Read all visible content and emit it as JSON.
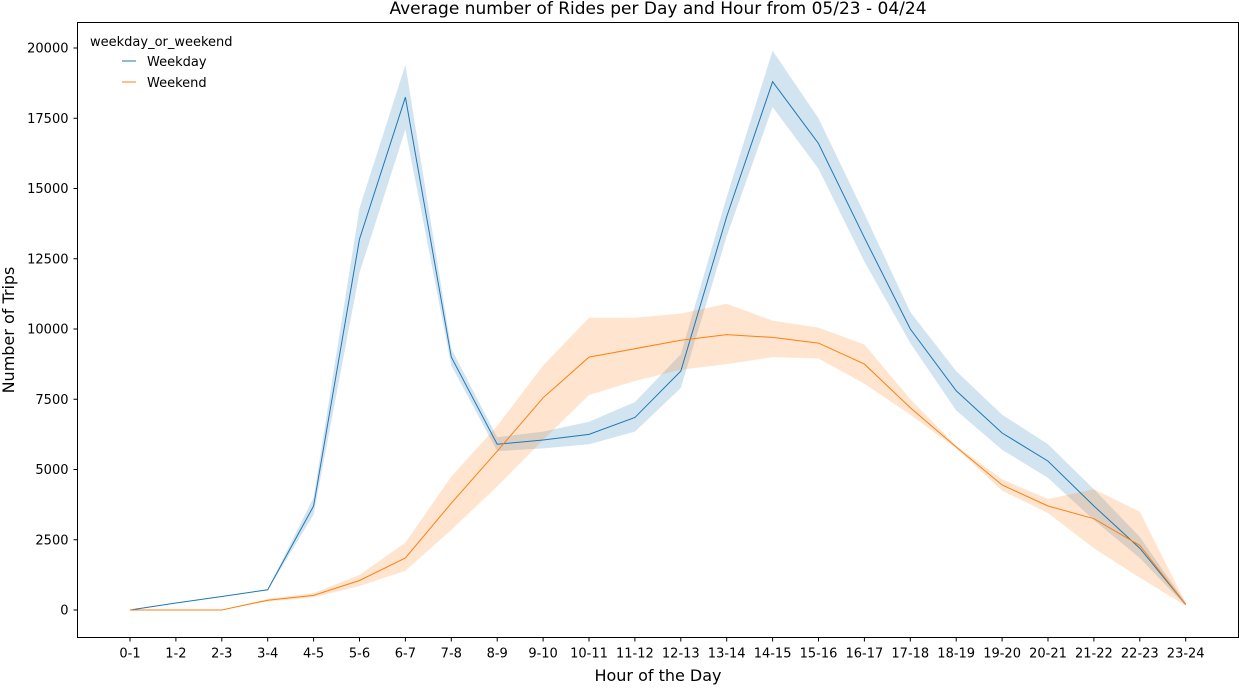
{
  "chart_data": {
    "type": "line",
    "title": "Average number of Rides per Day and Hour from 05/23 - 04/24",
    "xlabel": "Hour of the Day",
    "ylabel": "Number of Trips",
    "categories": [
      "0-1",
      "1-2",
      "2-3",
      "3-4",
      "4-5",
      "5-6",
      "6-7",
      "7-8",
      "8-9",
      "9-10",
      "10-11",
      "11-12",
      "12-13",
      "13-14",
      "14-15",
      "15-16",
      "16-17",
      "17-18",
      "18-19",
      "19-20",
      "20-21",
      "21-22",
      "22-23",
      "23-24"
    ],
    "yticks": [
      "0",
      "2500",
      "5000",
      "7500",
      "10000",
      "12500",
      "15000",
      "17500",
      "20000"
    ],
    "ylim": [
      -1000,
      21300
    ],
    "grid": false,
    "legend": {
      "title": "weekday_or_weekend",
      "placement": "top-left"
    },
    "series": [
      {
        "name": "Weekday",
        "color": "#1f77b4",
        "values": [
          0,
          250,
          480,
          720,
          3700,
          13200,
          18250,
          9000,
          5900,
          6050,
          6250,
          6850,
          8500,
          14000,
          18800,
          16600,
          13250,
          10000,
          7800,
          6300,
          5300,
          3700,
          2200,
          200
        ],
        "ci_low": [
          0,
          250,
          480,
          700,
          3400,
          12000,
          17100,
          8700,
          5650,
          5750,
          5900,
          6350,
          7900,
          13300,
          17900,
          15700,
          12400,
          9500,
          7100,
          5700,
          4700,
          3200,
          1850,
          150
        ],
        "ci_high": [
          0,
          250,
          480,
          740,
          4000,
          14300,
          19400,
          9300,
          6150,
          6350,
          6700,
          7400,
          9100,
          14700,
          19900,
          17500,
          14100,
          10600,
          8500,
          6950,
          5900,
          4300,
          2600,
          260
        ]
      },
      {
        "name": "Weekend",
        "color": "#ff7f0e",
        "values": [
          0,
          0,
          0,
          350,
          520,
          1050,
          1850,
          3800,
          5650,
          7550,
          9000,
          9300,
          9600,
          9800,
          9700,
          9500,
          8750,
          7200,
          5800,
          4450,
          3700,
          3250,
          2300,
          200
        ],
        "ci_low": [
          0,
          0,
          0,
          300,
          450,
          850,
          1400,
          2850,
          4400,
          6050,
          7650,
          8150,
          8550,
          8750,
          9000,
          8950,
          8050,
          6950,
          5750,
          4250,
          3450,
          2200,
          1150,
          150
        ],
        "ci_high": [
          0,
          0,
          0,
          400,
          600,
          1250,
          2400,
          4750,
          6550,
          8700,
          10400,
          10400,
          10550,
          10900,
          10300,
          10050,
          9450,
          7500,
          5850,
          4650,
          3950,
          4300,
          3500,
          250
        ]
      }
    ]
  }
}
